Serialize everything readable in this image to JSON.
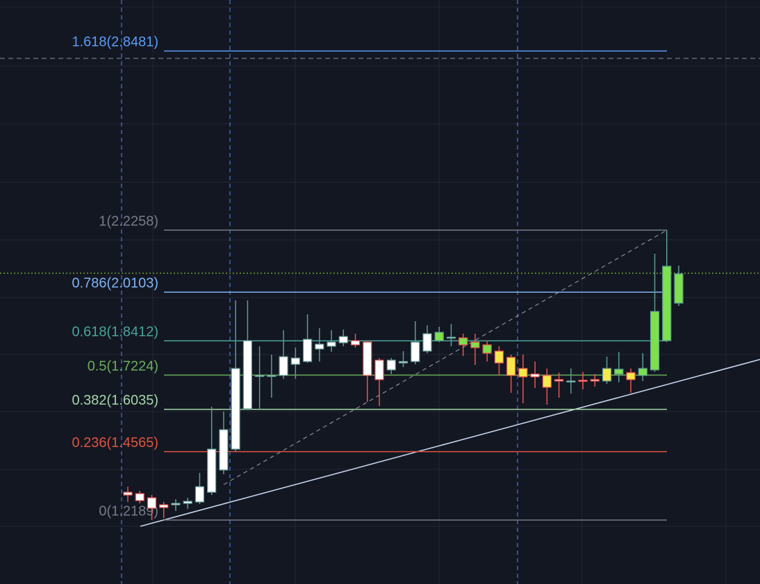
{
  "chart_data": {
    "type": "candlestick",
    "ylim": [
      0.9967,
      3.0252
    ],
    "categories": [
      null,
      null,
      null,
      null,
      null,
      null,
      null,
      null,
      null,
      null,
      null,
      null,
      null,
      null,
      null,
      null,
      null,
      null,
      null,
      null,
      null,
      null,
      null,
      null,
      null,
      null,
      null,
      null,
      null,
      null,
      null,
      null,
      null,
      null,
      null,
      null,
      null,
      null,
      null,
      null,
      null,
      null,
      null,
      null,
      null,
      null,
      null
    ],
    "open": [
      1.3154,
      1.3106,
      1.2961,
      1.2719,
      1.2719,
      1.2767,
      1.2816,
      1.3154,
      1.3927,
      1.4651,
      1.6052,
      1.7211,
      1.7211,
      1.7211,
      1.7597,
      1.7694,
      1.8129,
      1.8225,
      1.8346,
      1.8419,
      1.837,
      1.7742,
      1.7404,
      1.7646,
      1.7694,
      1.8056,
      1.8419,
      1.8515,
      1.8515,
      1.837,
      1.8274,
      1.8056,
      1.7839,
      1.7453,
      1.7259,
      1.7211,
      1.7066,
      1.7018,
      1.7042,
      1.7066,
      1.7018,
      1.7259,
      1.7308,
      1.7211,
      1.7404,
      1.8419,
      1.9723
    ],
    "high": [
      1.3347,
      1.3202,
      1.3057,
      1.2816,
      1.2912,
      1.2961,
      1.383,
      1.6124,
      1.5955,
      1.9819,
      1.9819,
      1.8225,
      1.7936,
      1.8781,
      1.8177,
      1.9336,
      1.8853,
      1.8781,
      1.8805,
      1.866,
      1.8419,
      1.7815,
      1.7815,
      1.8056,
      1.9095,
      1.895,
      1.8902,
      1.8998,
      1.866,
      1.866,
      1.8419,
      1.8225,
      1.7936,
      1.7936,
      1.7694,
      1.7453,
      1.7308,
      1.7453,
      1.7332,
      1.7259,
      1.7863,
      1.8032,
      1.7453,
      1.7984,
      2.1437,
      2.2258,
      2.1027
    ],
    "low": [
      1.2816,
      1.2767,
      1.2188,
      1.226,
      1.2502,
      1.2574,
      1.2743,
      1.3057,
      1.3782,
      1.4555,
      1.6004,
      1.6004,
      1.6438,
      1.709,
      1.709,
      1.7646,
      1.7694,
      1.8032,
      1.8225,
      1.8177,
      1.6293,
      1.6148,
      1.7259,
      1.7501,
      1.7597,
      1.7984,
      1.837,
      1.8225,
      1.7887,
      1.7573,
      1.7694,
      1.7211,
      1.6607,
      1.6245,
      1.6776,
      1.6197,
      1.6438,
      1.6583,
      1.6728,
      1.6825,
      1.6921,
      1.697,
      1.6607,
      1.7018,
      1.7332,
      1.837,
      1.9626
    ],
    "close": [
      1.3057,
      1.2864,
      1.2598,
      1.2623,
      1.2767,
      1.284,
      1.3347,
      1.4651,
      1.5327,
      1.7453,
      1.8419,
      1.7211,
      1.7211,
      1.7863,
      1.7815,
      1.8467,
      1.8298,
      1.837,
      1.8563,
      1.8274,
      1.7211,
      1.7066,
      1.7742,
      1.7694,
      1.837,
      1.866,
      1.8708,
      1.8539,
      1.8274,
      1.8177,
      1.7984,
      1.7646,
      1.7211,
      1.7163,
      1.7163,
      1.68,
      1.7018,
      1.7018,
      1.7018,
      1.7018,
      1.7453,
      1.7428,
      1.7066,
      1.7453,
      1.9433,
      2.1003,
      2.0737
    ],
    "colors": [
      "#ffffff",
      "#ffffff",
      "#ffffff",
      "#ffffff",
      "#ffffff",
      "#ffffff",
      "#ffffff",
      "#ffffff",
      "#ffffff",
      "#ffffff",
      "#ffffff",
      "#ffffff",
      "#ffffff",
      "#ffffff",
      "#ffffff",
      "#ffffff",
      "#ffffff",
      "#ffffff",
      "#ffffff",
      "#ffffff",
      "#ffffff",
      "#ffffff",
      "#ffffff",
      "#ffffff",
      "#ffffff",
      "#ffffff",
      "#7ee04a",
      "#ffffff",
      "#7ee04a",
      "#7ee04a",
      "#7ee04a",
      "#f5e94a",
      "#f5e94a",
      "#f5e94a",
      "#ffffff",
      "#f5e94a",
      "#ffffff",
      "#ffffff",
      "#ffffff",
      "#ffffff",
      "#f5e94a",
      "#7ee04a",
      "#f5e94a",
      "#7ee04a",
      "#7ee04a",
      "#7ee04a",
      "#7ee04a"
    ],
    "up_border": "#5d9c94",
    "down_border": "#ef5350",
    "fib_levels": [
      {
        "label": "1.618(2.8481)",
        "value": 2.8481,
        "color": "#5b9cf6"
      },
      {
        "label": "1(2.2258)",
        "value": 2.2258,
        "color": "#787b86"
      },
      {
        "label": "0.786(2.0103)",
        "value": 2.0103,
        "color": "#7fb3f5"
      },
      {
        "label": "0.618(1.8412)",
        "value": 1.8412,
        "color": "#4aa49a"
      },
      {
        "label": "0.5(1.7224)",
        "value": 1.7224,
        "color": "#6aae5a"
      },
      {
        "label": "0.382(1.6035)",
        "value": 1.6035,
        "color": "#a5d6a7"
      },
      {
        "label": "0.236(1.4565)",
        "value": 1.4565,
        "color": "#e0533f"
      },
      {
        "label": "0(1.2189)",
        "value": 1.2189,
        "color": "#787b86"
      }
    ]
  }
}
